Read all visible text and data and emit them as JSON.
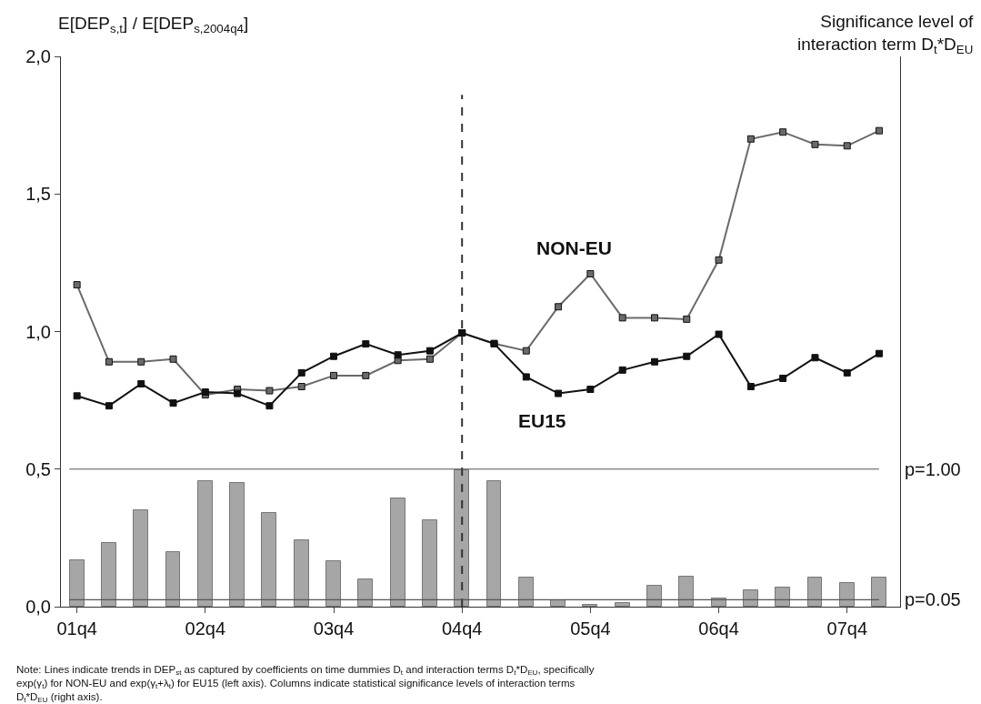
{
  "chart_data": {
    "type": "line",
    "ylabel": "E[DEP$_{s,t}$] / E[DEP$_{s,2004q4}$]",
    "y2label": "Significance level of interaction term D$_{t}$*D$_{EU}$",
    "categories": [
      "01q4",
      null,
      null,
      null,
      "02q4",
      null,
      null,
      null,
      "03q4",
      null,
      null,
      null,
      "04q4",
      null,
      null,
      null,
      "05q4",
      null,
      null,
      null,
      "06q4",
      null,
      null,
      null,
      "07q4",
      null
    ],
    "series": [
      {
        "name": "NON-EU",
        "color": "#6a6a6a",
        "values": [
          1.17,
          0.89,
          0.89,
          0.9,
          0.77,
          0.79,
          0.785,
          0.8,
          0.84,
          0.84,
          0.895,
          0.9,
          0.995,
          0.956,
          0.93,
          1.09,
          1.21,
          1.05,
          1.05,
          1.045,
          1.26,
          1.7,
          1.725,
          1.68,
          1.675,
          1.73
        ]
      },
      {
        "name": "EU15",
        "color": "#111111",
        "values": [
          0.766,
          0.73,
          0.81,
          0.74,
          0.78,
          0.775,
          0.73,
          0.85,
          0.91,
          0.955,
          0.915,
          0.93,
          0.995,
          0.956,
          0.835,
          0.775,
          0.79,
          0.86,
          0.89,
          0.91,
          0.99,
          0.8,
          0.83,
          0.905,
          0.85,
          0.92
        ]
      },
      {
        "type": "bar",
        "axis": "y2",
        "color": "#a6a6a6",
        "values": [
          0.34,
          0.46,
          0.7,
          0.4,
          0.91,
          0.9,
          0.68,
          0.48,
          0.33,
          0.2,
          0.79,
          0.63,
          0.99,
          0.91,
          0.21,
          0.045,
          0.014,
          0.027,
          0.15,
          0.22,
          0.06,
          0.12,
          0.14,
          0.21,
          0.17,
          0.21
        ]
      }
    ],
    "ylim": [
      0,
      2
    ],
    "yticks": [
      {
        "value": 0,
        "label": "0,0"
      },
      {
        "value": 0.5,
        "label": "0,5"
      },
      {
        "value": 1,
        "label": "1,0"
      },
      {
        "value": 1.5,
        "label": "1,5"
      },
      {
        "value": 2,
        "label": "2,0"
      }
    ],
    "y2lim": [
      0,
      4
    ],
    "y2ticks": [
      {
        "value": 0.05,
        "label": "p=0.05"
      },
      {
        "value": 1,
        "label": "p=1.00"
      }
    ],
    "ref_lines": [
      {
        "axis": "x",
        "value": "04q4",
        "line_style": "dashed",
        "color": "#333333"
      },
      {
        "axis": "y2",
        "value": 1,
        "color": "#555555"
      },
      {
        "axis": "y2",
        "value": 0.05,
        "color": "#555555"
      }
    ],
    "annotations": [
      "Note: Lines indicate trends in DEP$_{st}$ as captured by coefficients on time dummies D$_{t}$ and interaction terms D$_{t}$*D$_{EU}$, specifically exp(γ$_{t}$) for NON-EU and exp(γ$_{t}$+λ$_{t}$) for EU15 (left axis). Columns indicate statistical significance levels of interaction terms D$_{t}$*D$_{EU}$ (right axis)."
    ],
    "marker": "square",
    "line_style": "solid",
    "grid": false,
    "legend": false
  }
}
